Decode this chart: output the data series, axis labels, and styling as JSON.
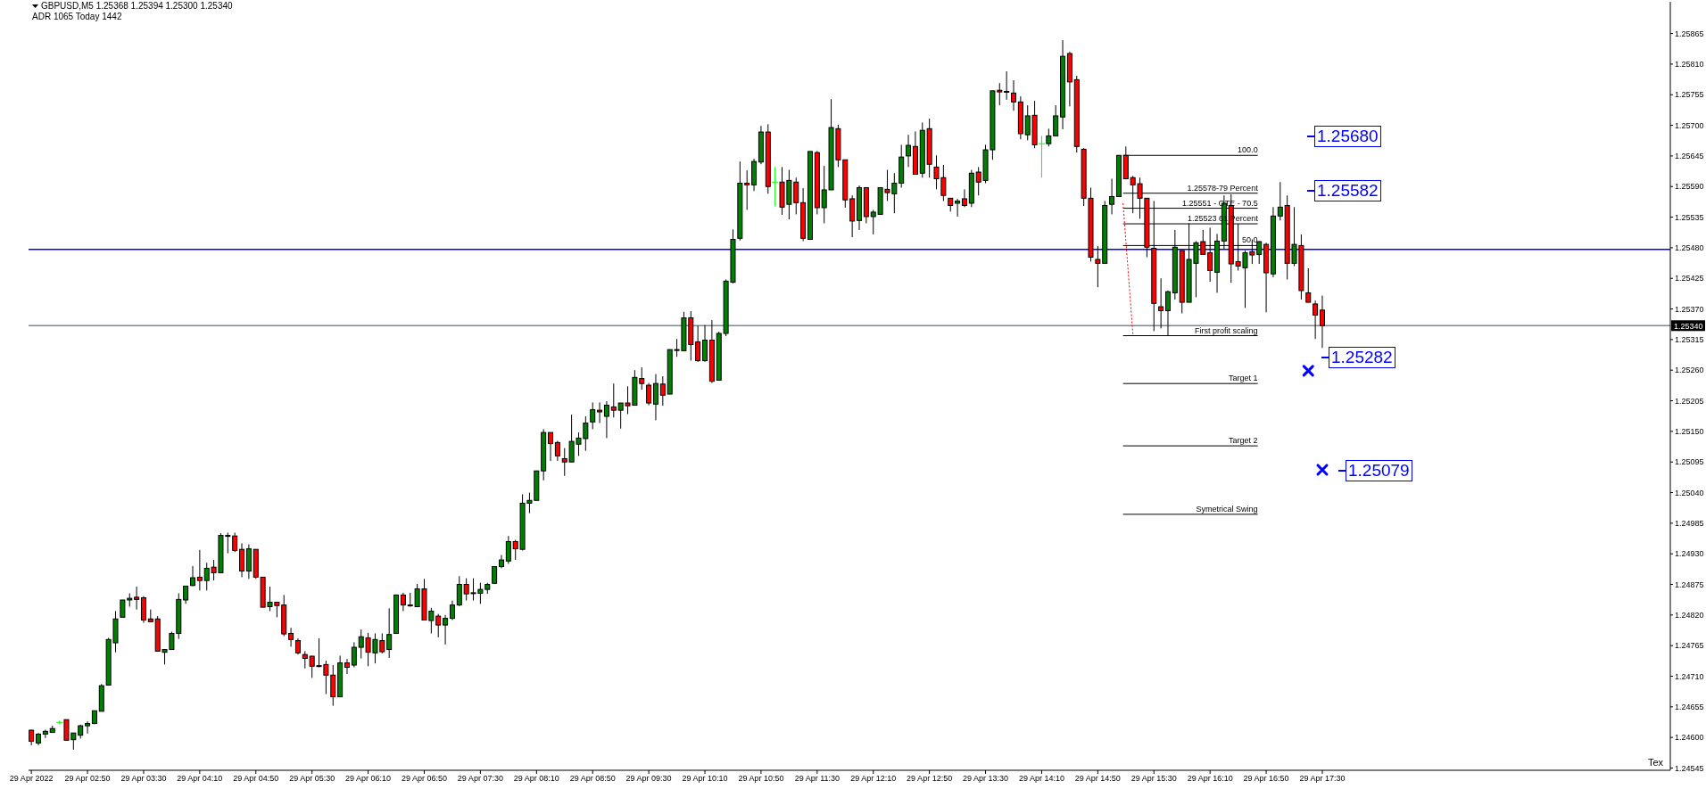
{
  "chart_data": {
    "type": "candlestick",
    "title": "GBPUSD,M5 1.25368 1.25394 1.25300 1.25340",
    "subtitle": "ADR 1065 Today 1442",
    "x": [
      "2022-04-29T02:10",
      "2022-04-29T02:15",
      "2022-04-29T02:20",
      "2022-04-29T02:25",
      "2022-04-29T02:30",
      "2022-04-29T02:35",
      "2022-04-29T02:40",
      "2022-04-29T02:45",
      "2022-04-29T02:50",
      "2022-04-29T02:55",
      "2022-04-29T03:00",
      "2022-04-29T03:05",
      "2022-04-29T03:10",
      "2022-04-29T03:15",
      "2022-04-29T03:20",
      "2022-04-29T03:25",
      "2022-04-29T03:30",
      "2022-04-29T03:35",
      "2022-04-29T03:40",
      "2022-04-29T03:45",
      "2022-04-29T03:50",
      "2022-04-29T03:55",
      "2022-04-29T04:00",
      "2022-04-29T04:05",
      "2022-04-29T04:10",
      "2022-04-29T04:15",
      "2022-04-29T04:20",
      "2022-04-29T04:25",
      "2022-04-29T04:30",
      "2022-04-29T04:35",
      "2022-04-29T04:40",
      "2022-04-29T04:45",
      "2022-04-29T04:50",
      "2022-04-29T04:55",
      "2022-04-29T05:00",
      "2022-04-29T05:05",
      "2022-04-29T05:10",
      "2022-04-29T05:15",
      "2022-04-29T05:20",
      "2022-04-29T05:25",
      "2022-04-29T05:30",
      "2022-04-29T05:35",
      "2022-04-29T05:40",
      "2022-04-29T05:45",
      "2022-04-29T05:50",
      "2022-04-29T05:55",
      "2022-04-29T06:00",
      "2022-04-29T06:05",
      "2022-04-29T06:10",
      "2022-04-29T06:15",
      "2022-04-29T06:20",
      "2022-04-29T06:25",
      "2022-04-29T06:30",
      "2022-04-29T06:35",
      "2022-04-29T06:40",
      "2022-04-29T06:45",
      "2022-04-29T06:50",
      "2022-04-29T06:55",
      "2022-04-29T07:00",
      "2022-04-29T07:05",
      "2022-04-29T07:10",
      "2022-04-29T07:15",
      "2022-04-29T07:20",
      "2022-04-29T07:25",
      "2022-04-29T07:30",
      "2022-04-29T07:35",
      "2022-04-29T07:40",
      "2022-04-29T07:45",
      "2022-04-29T07:50",
      "2022-04-29T07:55",
      "2022-04-29T08:00",
      "2022-04-29T08:05",
      "2022-04-29T08:10",
      "2022-04-29T08:15",
      "2022-04-29T08:20",
      "2022-04-29T08:25",
      "2022-04-29T08:30",
      "2022-04-29T08:35",
      "2022-04-29T08:40",
      "2022-04-29T08:45",
      "2022-04-29T08:50",
      "2022-04-29T08:55",
      "2022-04-29T09:00",
      "2022-04-29T09:05",
      "2022-04-29T09:10",
      "2022-04-29T09:15",
      "2022-04-29T09:20",
      "2022-04-29T09:25",
      "2022-04-29T09:30",
      "2022-04-29T09:35",
      "2022-04-29T09:40",
      "2022-04-29T09:45",
      "2022-04-29T09:50",
      "2022-04-29T09:55",
      "2022-04-29T10:00",
      "2022-04-29T10:05",
      "2022-04-29T10:10",
      "2022-04-29T10:15",
      "2022-04-29T10:20",
      "2022-04-29T10:25",
      "2022-04-29T10:30",
      "2022-04-29T10:35",
      "2022-04-29T10:40",
      "2022-04-29T10:45",
      "2022-04-29T10:50",
      "2022-04-29T10:55",
      "2022-04-29T11:00",
      "2022-04-29T11:05",
      "2022-04-29T11:10",
      "2022-04-29T11:15",
      "2022-04-29T11:20",
      "2022-04-29T11:25",
      "2022-04-29T11:30",
      "2022-04-29T11:35",
      "2022-04-29T11:40",
      "2022-04-29T11:45",
      "2022-04-29T11:50",
      "2022-04-29T11:55",
      "2022-04-29T12:00",
      "2022-04-29T12:05",
      "2022-04-29T12:10",
      "2022-04-29T12:15",
      "2022-04-29T12:20",
      "2022-04-29T12:25",
      "2022-04-29T12:30",
      "2022-04-29T12:35",
      "2022-04-29T12:40",
      "2022-04-29T12:45",
      "2022-04-29T12:50",
      "2022-04-29T12:55",
      "2022-04-29T13:00",
      "2022-04-29T13:05",
      "2022-04-29T13:10",
      "2022-04-29T13:15",
      "2022-04-29T13:20",
      "2022-04-29T13:25",
      "2022-04-29T13:30",
      "2022-04-29T13:35",
      "2022-04-29T13:40",
      "2022-04-29T13:45",
      "2022-04-29T13:50",
      "2022-04-29T13:55",
      "2022-04-29T14:00",
      "2022-04-29T14:05",
      "2022-04-29T14:10",
      "2022-04-29T14:15",
      "2022-04-29T14:20",
      "2022-04-29T14:25",
      "2022-04-29T14:30",
      "2022-04-29T14:35",
      "2022-04-29T14:40",
      "2022-04-29T14:45",
      "2022-04-29T14:50",
      "2022-04-29T14:55",
      "2022-04-29T15:00",
      "2022-04-29T15:05",
      "2022-04-29T15:10",
      "2022-04-29T15:15",
      "2022-04-29T15:20",
      "2022-04-29T15:25",
      "2022-04-29T15:30",
      "2022-04-29T15:35",
      "2022-04-29T15:40",
      "2022-04-29T15:45",
      "2022-04-29T15:50",
      "2022-04-29T15:55",
      "2022-04-29T16:00",
      "2022-04-29T16:05",
      "2022-04-29T16:10",
      "2022-04-29T16:15",
      "2022-04-29T16:20",
      "2022-04-29T16:25",
      "2022-04-29T16:30",
      "2022-04-29T16:35",
      "2022-04-29T16:40",
      "2022-04-29T16:45",
      "2022-04-29T16:50",
      "2022-04-29T16:55",
      "2022-04-29T17:00",
      "2022-04-29T17:05",
      "2022-04-29T17:10",
      "2022-04-29T17:15",
      "2022-04-29T17:20",
      "2022-04-29T17:25",
      "2022-04-29T17:30"
    ],
    "ohlc": [
      [
        1.24613,
        1.24614,
        1.24586,
        1.24593
      ],
      [
        1.2459,
        1.24608,
        1.24586,
        1.24606
      ],
      [
        1.24606,
        1.24614,
        1.24599,
        1.24611
      ],
      [
        1.24609,
        1.24621,
        1.24609,
        1.24616
      ],
      [
        1.24627,
        1.2463,
        1.24624,
        1.24627
      ],
      [
        1.24632,
        1.24632,
        1.24595,
        1.24595
      ],
      [
        1.24596,
        1.24608,
        1.24578,
        1.24608
      ],
      [
        1.24604,
        1.24623,
        1.24598,
        1.24621
      ],
      [
        1.24621,
        1.24629,
        1.24607,
        1.24625
      ],
      [
        1.24625,
        1.24648,
        1.24624,
        1.24648
      ],
      [
        1.24647,
        1.24696,
        1.24647,
        1.24693
      ],
      [
        1.24694,
        1.24779,
        1.24694,
        1.24776
      ],
      [
        1.2477,
        1.24827,
        1.24753,
        1.24813
      ],
      [
        1.24816,
        1.24847,
        1.24816,
        1.24847
      ],
      [
        1.24847,
        1.24859,
        1.24835,
        1.2485
      ],
      [
        1.24852,
        1.24871,
        1.2483,
        1.24848
      ],
      [
        1.24851,
        1.24854,
        1.24806,
        1.24811
      ],
      [
        1.24813,
        1.2483,
        1.24808,
        1.24808
      ],
      [
        1.24813,
        1.24818,
        1.24755,
        1.24755
      ],
      [
        1.24753,
        1.24758,
        1.24731,
        1.24758
      ],
      [
        1.24758,
        1.2479,
        1.24758,
        1.24787
      ],
      [
        1.24787,
        1.24859,
        1.24777,
        1.24848
      ],
      [
        1.24847,
        1.24872,
        1.2484,
        1.24872
      ],
      [
        1.24873,
        1.24908,
        1.24872,
        1.24887
      ],
      [
        1.24888,
        1.24937,
        1.24864,
        1.24882
      ],
      [
        1.24882,
        1.24914,
        1.24864,
        1.24904
      ],
      [
        1.24906,
        1.24919,
        1.24882,
        1.24896
      ],
      [
        1.24896,
        1.24967,
        1.24896,
        1.24963
      ],
      [
        1.24962,
        1.24968,
        1.24931,
        1.24963
      ],
      [
        1.24962,
        1.24968,
        1.24933,
        1.24936
      ],
      [
        1.24938,
        1.24949,
        1.24888,
        1.24899
      ],
      [
        1.24899,
        1.24947,
        1.24885,
        1.24939
      ],
      [
        1.24938,
        1.24938,
        1.24885,
        1.24888
      ],
      [
        1.24888,
        1.24888,
        1.24834,
        1.24834
      ],
      [
        1.24835,
        1.24871,
        1.24827,
        1.24843
      ],
      [
        1.24843,
        1.24843,
        1.24816,
        1.24837
      ],
      [
        1.24838,
        1.24856,
        1.24782,
        1.24786
      ],
      [
        1.24787,
        1.24797,
        1.24763,
        1.24776
      ],
      [
        1.24774,
        1.24778,
        1.24749,
        1.24752
      ],
      [
        1.24749,
        1.24755,
        1.24724,
        1.24742
      ],
      [
        1.24746,
        1.24747,
        1.24707,
        1.24728
      ],
      [
        1.24729,
        1.24778,
        1.24726,
        1.24728
      ],
      [
        1.24731,
        1.24738,
        1.24678,
        1.24712
      ],
      [
        1.24712,
        1.2473,
        1.24657,
        1.24673
      ],
      [
        1.24673,
        1.24747,
        1.24673,
        1.24734
      ],
      [
        1.24734,
        1.24741,
        1.24714,
        1.24726
      ],
      [
        1.2473,
        1.24771,
        1.24726,
        1.24762
      ],
      [
        1.24762,
        1.24794,
        1.24742,
        1.24781
      ],
      [
        1.24779,
        1.24788,
        1.24728,
        1.24753
      ],
      [
        1.24752,
        1.24787,
        1.24733,
        1.24776
      ],
      [
        1.24774,
        1.24787,
        1.24751,
        1.24754
      ],
      [
        1.24758,
        1.24832,
        1.24743,
        1.24785
      ],
      [
        1.24787,
        1.24857,
        1.24787,
        1.24856
      ],
      [
        1.24856,
        1.2486,
        1.24827,
        1.24838
      ],
      [
        1.24838,
        1.2486,
        1.24835,
        1.24837
      ],
      [
        1.24835,
        1.24876,
        1.24835,
        1.24867
      ],
      [
        1.24867,
        1.24885,
        1.24811,
        1.24811
      ],
      [
        1.2481,
        1.24833,
        1.24787,
        1.24827
      ],
      [
        1.24818,
        1.24822,
        1.2478,
        1.24802
      ],
      [
        1.24802,
        1.2482,
        1.24767,
        1.24814
      ],
      [
        1.24814,
        1.24846,
        1.24811,
        1.24838
      ],
      [
        1.24838,
        1.2489,
        1.24836,
        1.24875
      ],
      [
        1.24875,
        1.24886,
        1.24846,
        1.24858
      ],
      [
        1.2486,
        1.24886,
        1.24846,
        1.24859
      ],
      [
        1.24859,
        1.24878,
        1.2484,
        1.24866
      ],
      [
        1.24866,
        1.24878,
        1.24858,
        1.24875
      ],
      [
        1.24877,
        1.24907,
        1.24877,
        1.24907
      ],
      [
        1.24907,
        1.24928,
        1.24904,
        1.24919
      ],
      [
        1.24917,
        1.24962,
        1.24912,
        1.24952
      ],
      [
        1.24952,
        1.24955,
        1.24919,
        1.24939
      ],
      [
        1.24938,
        1.25037,
        1.24936,
        1.25021
      ],
      [
        1.25021,
        1.2504,
        1.25003,
        1.25026
      ],
      [
        1.25026,
        1.25079,
        1.25026,
        1.25079
      ],
      [
        1.25079,
        1.25154,
        1.25062,
        1.25148
      ],
      [
        1.25148,
        1.25148,
        1.25097,
        1.25128
      ],
      [
        1.2513,
        1.25133,
        1.25097,
        1.25106
      ],
      [
        1.25101,
        1.2512,
        1.2507,
        1.25095
      ],
      [
        1.25095,
        1.2518,
        1.25095,
        1.25132
      ],
      [
        1.25127,
        1.25148,
        1.25106,
        1.25138
      ],
      [
        1.25137,
        1.25177,
        1.25115,
        1.25165
      ],
      [
        1.25167,
        1.25202,
        1.25154,
        1.25189
      ],
      [
        1.25188,
        1.25202,
        1.25165,
        1.25185
      ],
      [
        1.25177,
        1.25204,
        1.25138,
        1.25197
      ],
      [
        1.25194,
        1.25236,
        1.25175,
        1.25188
      ],
      [
        1.25188,
        1.25201,
        1.25155,
        1.25201
      ],
      [
        1.25201,
        1.25231,
        1.25181,
        1.25196
      ],
      [
        1.25197,
        1.2526,
        1.25197,
        1.25247
      ],
      [
        1.25245,
        1.25265,
        1.25225,
        1.25236
      ],
      [
        1.25233,
        1.25237,
        1.25197,
        1.25201
      ],
      [
        1.25199,
        1.25253,
        1.2517,
        1.25236
      ],
      [
        1.25235,
        1.25249,
        1.25196,
        1.25215
      ],
      [
        1.25217,
        1.25297,
        1.25217,
        1.25297
      ],
      [
        1.25296,
        1.25316,
        1.25284,
        1.25297
      ],
      [
        1.25295,
        1.25365,
        1.25295,
        1.25354
      ],
      [
        1.25354,
        1.25366,
        1.25277,
        1.25306
      ],
      [
        1.25311,
        1.2534,
        1.25275,
        1.25277
      ],
      [
        1.25277,
        1.25341,
        1.25275,
        1.25314
      ],
      [
        1.25314,
        1.2535,
        1.25237,
        1.2524
      ],
      [
        1.25242,
        1.25329,
        1.25242,
        1.25326
      ],
      [
        1.25326,
        1.25423,
        1.25321,
        1.2542
      ],
      [
        1.25418,
        1.25513,
        1.25416,
        1.25495
      ],
      [
        1.25497,
        1.25635,
        1.25493,
        1.25596
      ],
      [
        1.25596,
        1.25619,
        1.25548,
        1.25593
      ],
      [
        1.25593,
        1.2564,
        1.25582,
        1.25635
      ],
      [
        1.25634,
        1.25699,
        1.2563,
        1.25688
      ],
      [
        1.25688,
        1.25702,
        1.25577,
        1.2559
      ],
      [
        1.25598,
        1.25625,
        1.25555,
        1.25598
      ],
      [
        1.25598,
        1.25625,
        1.25539,
        1.25553
      ],
      [
        1.25558,
        1.2562,
        1.25531,
        1.25601
      ],
      [
        1.25598,
        1.25606,
        1.2554,
        1.25561
      ],
      [
        1.25561,
        1.25587,
        1.25492,
        1.25497
      ],
      [
        1.25495,
        1.25653,
        1.25495,
        1.25653
      ],
      [
        1.25651,
        1.25654,
        1.2554,
        1.25552
      ],
      [
        1.25552,
        1.25627,
        1.25524,
        1.25584
      ],
      [
        1.25584,
        1.25747,
        1.25584,
        1.25696
      ],
      [
        1.25694,
        1.25701,
        1.25625,
        1.25638
      ],
      [
        1.25638,
        1.25638,
        1.25552,
        1.25566
      ],
      [
        1.25568,
        1.25574,
        1.25499,
        1.25528
      ],
      [
        1.25529,
        1.25592,
        1.25512,
        1.25588
      ],
      [
        1.25588,
        1.25588,
        1.25524,
        1.25536
      ],
      [
        1.25536,
        1.25548,
        1.25504,
        1.25544
      ],
      [
        1.2554,
        1.25588,
        1.25539,
        1.25588
      ],
      [
        1.25585,
        1.2562,
        1.25564,
        1.25579
      ],
      [
        1.25577,
        1.25614,
        1.25542,
        1.25596
      ],
      [
        1.25596,
        1.25665,
        1.25588,
        1.25643
      ],
      [
        1.25645,
        1.25683,
        1.25625,
        1.25664
      ],
      [
        1.25662,
        1.25689,
        1.25612,
        1.25612
      ],
      [
        1.25614,
        1.25705,
        1.25606,
        1.25691
      ],
      [
        1.25694,
        1.25712,
        1.25606,
        1.2563
      ],
      [
        1.25625,
        1.25646,
        1.25585,
        1.25604
      ],
      [
        1.25606,
        1.25629,
        1.25564,
        1.25574
      ],
      [
        1.25569,
        1.25569,
        1.25545,
        1.25556
      ],
      [
        1.2556,
        1.25568,
        1.25536,
        1.25564
      ],
      [
        1.25568,
        1.25585,
        1.25553,
        1.25556
      ],
      [
        1.2556,
        1.2562,
        1.25553,
        1.25614
      ],
      [
        1.25616,
        1.25625,
        1.25574,
        1.25598
      ],
      [
        1.25601,
        1.25665,
        1.25596,
        1.25656
      ],
      [
        1.25656,
        1.25762,
        1.25638,
        1.25762
      ],
      [
        1.25763,
        1.25776,
        1.25736,
        1.2576
      ],
      [
        1.2576,
        1.25797,
        1.25746,
        1.25761
      ],
      [
        1.25758,
        1.25781,
        1.25726,
        1.25742
      ],
      [
        1.25742,
        1.25752,
        1.25675,
        1.25685
      ],
      [
        1.25683,
        1.25736,
        1.25673,
        1.25717
      ],
      [
        1.25718,
        1.25744,
        1.25659,
        1.25665
      ],
      [
        1.25667,
        1.25681,
        1.25606,
        1.25667
      ],
      [
        1.25667,
        1.25694,
        1.25662,
        1.25681
      ],
      [
        1.25681,
        1.25736,
        1.25681,
        1.25717
      ],
      [
        1.25715,
        1.25853,
        1.25693,
        1.25824
      ],
      [
        1.25829,
        1.25832,
        1.25734,
        1.25778
      ],
      [
        1.25782,
        1.25789,
        1.25651,
        1.25662
      ],
      [
        1.25657,
        1.25659,
        1.25555,
        1.25569
      ],
      [
        1.25569,
        1.25588,
        1.25455,
        1.25463
      ],
      [
        1.25459,
        1.25483,
        1.25409,
        1.25452
      ],
      [
        1.25452,
        1.25564,
        1.25452,
        1.25556
      ],
      [
        1.25558,
        1.25604,
        1.2554,
        1.25572
      ],
      [
        1.25572,
        1.25646,
        1.25572,
        1.25646
      ],
      [
        1.25646,
        1.25662,
        1.25603,
        1.25604
      ],
      [
        1.25606,
        1.25609,
        1.25542,
        1.25593
      ],
      [
        1.25595,
        1.25606,
        1.25532,
        1.25569
      ],
      [
        1.25569,
        1.25569,
        1.25463,
        1.25481
      ],
      [
        1.25479,
        1.25564,
        1.2533,
        1.2538
      ],
      [
        1.25374,
        1.25425,
        1.25335,
        1.25367
      ],
      [
        1.25367,
        1.25403,
        1.25322,
        1.25401
      ],
      [
        1.25399,
        1.25512,
        1.25387,
        1.25481
      ],
      [
        1.25475,
        1.25475,
        1.25362,
        1.25382
      ],
      [
        1.25382,
        1.25524,
        1.25382,
        1.25459
      ],
      [
        1.25452,
        1.25492,
        1.25391,
        1.25489
      ],
      [
        1.25491,
        1.25512,
        1.25468,
        1.25468
      ],
      [
        1.25471,
        1.25516,
        1.25419,
        1.25439
      ],
      [
        1.25436,
        1.25505,
        1.25399,
        1.25492
      ],
      [
        1.25492,
        1.25574,
        1.25478,
        1.2556
      ],
      [
        1.25556,
        1.25576,
        1.25417,
        1.25451
      ],
      [
        1.25455,
        1.25523,
        1.25439,
        1.25447
      ],
      [
        1.25444,
        1.25475,
        1.25372,
        1.25471
      ],
      [
        1.25473,
        1.25495,
        1.25451,
        1.25467
      ],
      [
        1.25468,
        1.25492,
        1.25451,
        1.25491
      ],
      [
        1.25486,
        1.25489,
        1.25364,
        1.25435
      ],
      [
        1.25433,
        1.25553,
        1.25427,
        1.25537
      ],
      [
        1.25537,
        1.25598,
        1.25529,
        1.25553
      ],
      [
        1.25556,
        1.25574,
        1.25423,
        1.25452
      ],
      [
        1.25452,
        1.25553,
        1.25447,
        1.25486
      ],
      [
        1.25484,
        1.25504,
        1.25387,
        1.25403
      ],
      [
        1.25399,
        1.25443,
        1.25382,
        1.25382
      ],
      [
        1.25379,
        1.25385,
        1.25316,
        1.25359
      ],
      [
        1.25368,
        1.25394,
        1.253,
        1.2534
      ]
    ],
    "colors": [
      "#ff0000",
      "#008000",
      "#008000",
      "#008000",
      "#00ff00",
      "#ff0000",
      "#008000",
      "#008000",
      "#008000",
      "#008000",
      "#008000",
      "#008000",
      "#008000",
      "#008000",
      "#008000",
      "#ff0000",
      "#ff0000",
      "#ff0000",
      "#ff0000",
      "#008000",
      "#008000",
      "#008000",
      "#008000",
      "#008000",
      "#ff0000",
      "#008000",
      "#ff0000",
      "#008000",
      "#008000",
      "#ff0000",
      "#ff0000",
      "#008000",
      "#ff0000",
      "#ff0000",
      "#008000",
      "#ff0000",
      "#ff0000",
      "#ff0000",
      "#ff0000",
      "#ff0000",
      "#ff0000",
      "#ff0000",
      "#ff0000",
      "#ff0000",
      "#008000",
      "#ff0000",
      "#008000",
      "#008000",
      "#ff0000",
      "#008000",
      "#ff0000",
      "#008000",
      "#008000",
      "#ff0000",
      "#ff0000",
      "#008000",
      "#ff0000",
      "#008000",
      "#ff0000",
      "#008000",
      "#008000",
      "#008000",
      "#ff0000",
      "#ff0000",
      "#008000",
      "#008000",
      "#008000",
      "#008000",
      "#008000",
      "#ff0000",
      "#008000",
      "#008000",
      "#008000",
      "#008000",
      "#ff0000",
      "#ff0000",
      "#ff0000",
      "#008000",
      "#008000",
      "#008000",
      "#008000",
      "#ff0000",
      "#008000",
      "#ff0000",
      "#008000",
      "#ff0000",
      "#008000",
      "#ff0000",
      "#ff0000",
      "#008000",
      "#ff0000",
      "#008000",
      "#008000",
      "#008000",
      "#ff0000",
      "#ff0000",
      "#008000",
      "#ff0000",
      "#008000",
      "#008000",
      "#008000",
      "#008000",
      "#ff0000",
      "#008000",
      "#008000",
      "#ff0000",
      "#00ff00",
      "#ff0000",
      "#008000",
      "#ff0000",
      "#ff0000",
      "#008000",
      "#ff0000",
      "#008000",
      "#008000",
      "#ff0000",
      "#ff0000",
      "#ff0000",
      "#008000",
      "#ff0000",
      "#008000",
      "#008000",
      "#ff0000",
      "#008000",
      "#008000",
      "#008000",
      "#ff0000",
      "#008000",
      "#ff0000",
      "#ff0000",
      "#ff0000",
      "#ff0000",
      "#008000",
      "#ff0000",
      "#008000",
      "#ff0000",
      "#008000",
      "#008000",
      "#ff0000",
      "#008000",
      "#ff0000",
      "#ff0000",
      "#008000",
      "#ff0000",
      "#00ff00",
      "#008000",
      "#008000",
      "#008000",
      "#ff0000",
      "#ff0000",
      "#ff0000",
      "#ff0000",
      "#ff0000",
      "#008000",
      "#008000",
      "#008000",
      "#ff0000",
      "#ff0000",
      "#ff0000",
      "#ff0000",
      "#ff0000",
      "#ff0000",
      "#008000",
      "#008000",
      "#ff0000",
      "#008000",
      "#008000",
      "#ff0000",
      "#ff0000",
      "#008000",
      "#008000",
      "#ff0000",
      "#ff0000",
      "#008000",
      "#ff0000",
      "#008000",
      "#ff0000",
      "#008000",
      "#008000",
      "#ff0000",
      "#008000",
      "#ff0000",
      "#ff0000",
      "#ff0000",
      "#ff0000"
    ],
    "series": [
      {
        "type": "line",
        "name": "100.0",
        "color": "#000000",
        "x": [
          "2022-04-29T15:08",
          "2022-04-29T16:44"
        ],
        "values": [
          1.25646,
          1.25646
        ]
      },
      {
        "type": "line",
        "name": "1.25578-79 Percent",
        "color": "#000000",
        "x": [
          "2022-04-29T15:08",
          "2022-04-29T16:44"
        ],
        "values": [
          1.25578,
          1.25578
        ]
      },
      {
        "type": "line",
        "name": "1.25551 - OTE - 70.5",
        "color": "#000000",
        "x": [
          "2022-04-29T15:08",
          "2022-04-29T16:44"
        ],
        "values": [
          1.25551,
          1.25551
        ]
      },
      {
        "type": "line",
        "name": "1.25523 61 Percent",
        "color": "#000000",
        "x": [
          "2022-04-29T15:08",
          "2022-04-29T16:44"
        ],
        "values": [
          1.25523,
          1.25523
        ]
      },
      {
        "type": "line",
        "name": "50.0",
        "color": "#000000",
        "x": [
          "2022-04-29T15:08",
          "2022-04-29T16:44"
        ],
        "values": [
          1.25484,
          1.25484
        ]
      },
      {
        "type": "line",
        "name": "First profit scaling",
        "color": "#000000",
        "x": [
          "2022-04-29T15:08",
          "2022-04-29T16:44"
        ],
        "values": [
          1.25322,
          1.25322
        ]
      },
      {
        "type": "line",
        "name": "Target 1",
        "color": "#000000",
        "x": [
          "2022-04-29T15:08",
          "2022-04-29T16:44"
        ],
        "values": [
          1.25236,
          1.25236
        ]
      },
      {
        "type": "line",
        "name": "Target 2",
        "color": "#000000",
        "x": [
          "2022-04-29T15:08",
          "2022-04-29T16:44"
        ],
        "values": [
          1.25124,
          1.25124
        ]
      },
      {
        "type": "line",
        "name": "Symetrical Swing",
        "color": "#000000",
        "x": [
          "2022-04-29T15:08",
          "2022-04-29T16:44"
        ],
        "values": [
          1.25001,
          1.25001
        ]
      },
      {
        "type": "line",
        "color": "#ff0000",
        "line_style": "dotted",
        "x": [
          "2022-04-29T15:08",
          "2022-04-29T15:15"
        ],
        "values": [
          1.2556,
          1.25325
        ]
      },
      {
        "type": "scatter",
        "color": "#0000ff",
        "marker": "cross",
        "x": [
          "2022-04-29T17:20",
          "2022-04-29T17:30"
        ],
        "values": [
          1.25259,
          1.25081
        ]
      }
    ],
    "ref_lines": [
      {
        "axis": "y",
        "value": 1.25477,
        "color": "#0000ff"
      },
      {
        "axis": "y",
        "value": 1.2534,
        "label": "1.25340",
        "color": "#778899"
      }
    ],
    "annotations": [
      "1.25680",
      "1.25582",
      "1.25282",
      "1.25079",
      "Tex"
    ],
    "xlim": [
      "2022-04-29T02:08",
      "2022-04-29T21:38"
    ],
    "xticks": [
      {
        "value": "2022-04-29T02:10",
        "label": "29 Apr 2022"
      },
      {
        "value": "2022-04-29T02:50",
        "label": "29 Apr 02:50"
      },
      {
        "value": "2022-04-29T03:30",
        "label": "29 Apr 03:30"
      },
      {
        "value": "2022-04-29T04:10",
        "label": "29 Apr 04:10"
      },
      {
        "value": "2022-04-29T04:50",
        "label": "29 Apr 04:50"
      },
      {
        "value": "2022-04-29T05:30",
        "label": "29 Apr 05:30"
      },
      {
        "value": "2022-04-29T06:10",
        "label": "29 Apr 06:10"
      },
      {
        "value": "2022-04-29T06:50",
        "label": "29 Apr 06:50"
      },
      {
        "value": "2022-04-29T07:30",
        "label": "29 Apr 07:30"
      },
      {
        "value": "2022-04-29T08:10",
        "label": "29 Apr 08:10"
      },
      {
        "value": "2022-04-29T08:50",
        "label": "29 Apr 08:50"
      },
      {
        "value": "2022-04-29T09:30",
        "label": "29 Apr 09:30"
      },
      {
        "value": "2022-04-29T10:10",
        "label": "29 Apr 10:10"
      },
      {
        "value": "2022-04-29T10:50",
        "label": "29 Apr 10:50"
      },
      {
        "value": "2022-04-29T11:30",
        "label": "29 Apr 11:30"
      },
      {
        "value": "2022-04-29T12:10",
        "label": "29 Apr 12:10"
      },
      {
        "value": "2022-04-29T12:50",
        "label": "29 Apr 12:50"
      },
      {
        "value": "2022-04-29T13:30",
        "label": "29 Apr 13:30"
      },
      {
        "value": "2022-04-29T14:10",
        "label": "29 Apr 14:10"
      },
      {
        "value": "2022-04-29T14:50",
        "label": "29 Apr 14:50"
      },
      {
        "value": "2022-04-29T15:30",
        "label": "29 Apr 15:30"
      },
      {
        "value": "2022-04-29T16:10",
        "label": "29 Apr 16:10"
      },
      {
        "value": "2022-04-29T16:50",
        "label": "29 Apr 16:50"
      },
      {
        "value": "2022-04-29T17:30",
        "label": "29 Apr 17:30"
      }
    ],
    "ylim": [
      1.24541,
      1.25922
    ],
    "yticks": [
      1.24545,
      {
        "value": 1.246,
        "label": "1.24600"
      },
      1.24655,
      {
        "value": 1.2471,
        "label": "1.24710"
      },
      1.24765,
      {
        "value": 1.2482,
        "label": "1.24820"
      },
      1.24875,
      {
        "value": 1.2493,
        "label": "1.24930"
      },
      1.24985,
      {
        "value": 1.2504,
        "label": "1.25040"
      },
      1.25095,
      {
        "value": 1.2515,
        "label": "1.25150"
      },
      1.25205,
      {
        "value": 1.2526,
        "label": "1.25260"
      },
      1.25315,
      {
        "value": 1.2537,
        "label": "1.25370"
      },
      1.25425,
      {
        "value": 1.2548,
        "label": "1.25480"
      },
      1.25535,
      {
        "value": 1.2559,
        "label": "1.25590"
      },
      1.25645,
      {
        "value": 1.257,
        "label": "1.25700"
      },
      1.25755,
      {
        "value": 1.2581,
        "label": "1.25810"
      },
      1.25865
    ]
  }
}
